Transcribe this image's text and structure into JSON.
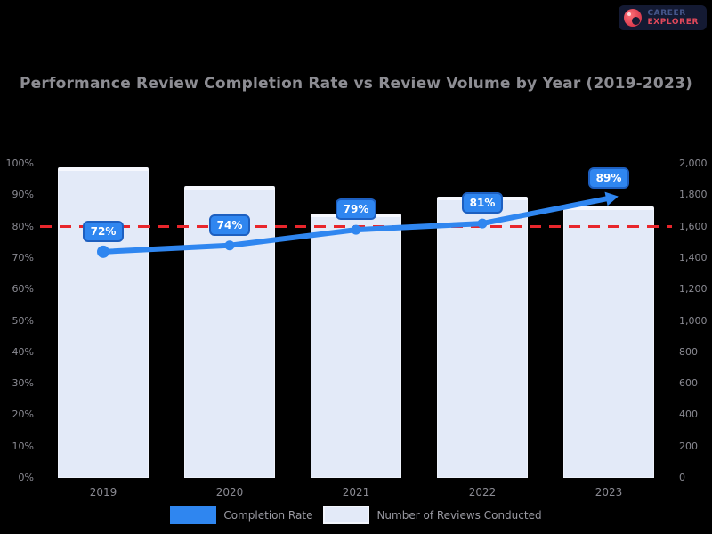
{
  "page": {
    "background": "#000000"
  },
  "logo": {
    "line1": "CAREER",
    "line2": "EXPLORER"
  },
  "chart_data": {
    "type": "bar",
    "title": "Performance Review Completion Rate vs Review Volume by Year (2019-2023)",
    "categories": [
      "2019",
      "2020",
      "2021",
      "2022",
      "2023"
    ],
    "series": [
      {
        "name": "Completion Rate",
        "type": "line",
        "axis": "left",
        "values": [
          72,
          74,
          79,
          81,
          89
        ],
        "labels": [
          "72%",
          "74%",
          "79%",
          "81%",
          "89%"
        ],
        "color": "#2f86f0",
        "marker": "circle",
        "end_arrow": true
      },
      {
        "name": "Number of Reviews Conducted",
        "type": "bar",
        "axis": "right",
        "values": [
          1980,
          1860,
          1680,
          1790,
          1730
        ],
        "color": "#e3eaf8"
      }
    ],
    "target_line": {
      "value": 80,
      "axis": "left",
      "color": "#e8262c",
      "style": "dashed"
    },
    "left_axis": {
      "min": 0,
      "max": 100,
      "step": 10,
      "suffix": "%",
      "ticks": [
        "100%",
        "90%",
        "80%",
        "70%",
        "60%",
        "50%",
        "40%",
        "30%",
        "20%",
        "10%",
        "0%"
      ]
    },
    "right_axis": {
      "min": 0,
      "max": 2000,
      "step": 200,
      "ticks": [
        "2,000",
        "1,800",
        "1,600",
        "1,400",
        "1,200",
        "1,000",
        "800",
        "600",
        "400",
        "200",
        "0"
      ]
    },
    "legend": [
      {
        "label": "Completion Rate",
        "color": "#2f86f0",
        "kind": "line"
      },
      {
        "label": "Number of Reviews Conducted",
        "color": "#e3eaf8",
        "kind": "bar"
      }
    ],
    "grid": false,
    "legend_position": "bottom",
    "background": "#000000"
  }
}
